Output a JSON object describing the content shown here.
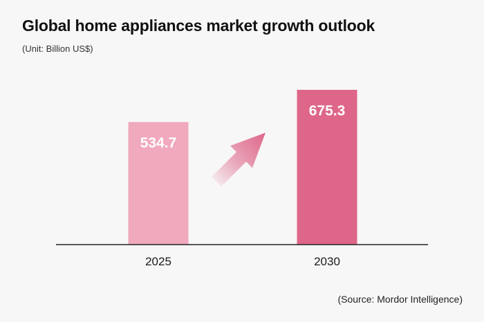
{
  "title": "Global home appliances market growth outlook",
  "subtitle": "(Unit: Billion US$)",
  "source": "(Source: Mordor Intelligence)",
  "chart_data": {
    "type": "bar",
    "title": "Global home appliances market growth outlook",
    "ylabel": "Billion US$",
    "xlabel": "",
    "categories": [
      "2025",
      "2030"
    ],
    "values": [
      534.7,
      675.3
    ],
    "value_labels": [
      "534.7",
      "675.3"
    ],
    "ylim": [
      0,
      700
    ],
    "grid": false,
    "legend": "none",
    "colors": [
      "#f0a9bd",
      "#de6689"
    ],
    "annotation": "growth-arrow"
  },
  "colors": {
    "background": "#f7f7f7",
    "bar_2025": "#f0a9bd",
    "bar_2030": "#de6689",
    "arrow": "#de6689",
    "axis": "#222222"
  }
}
